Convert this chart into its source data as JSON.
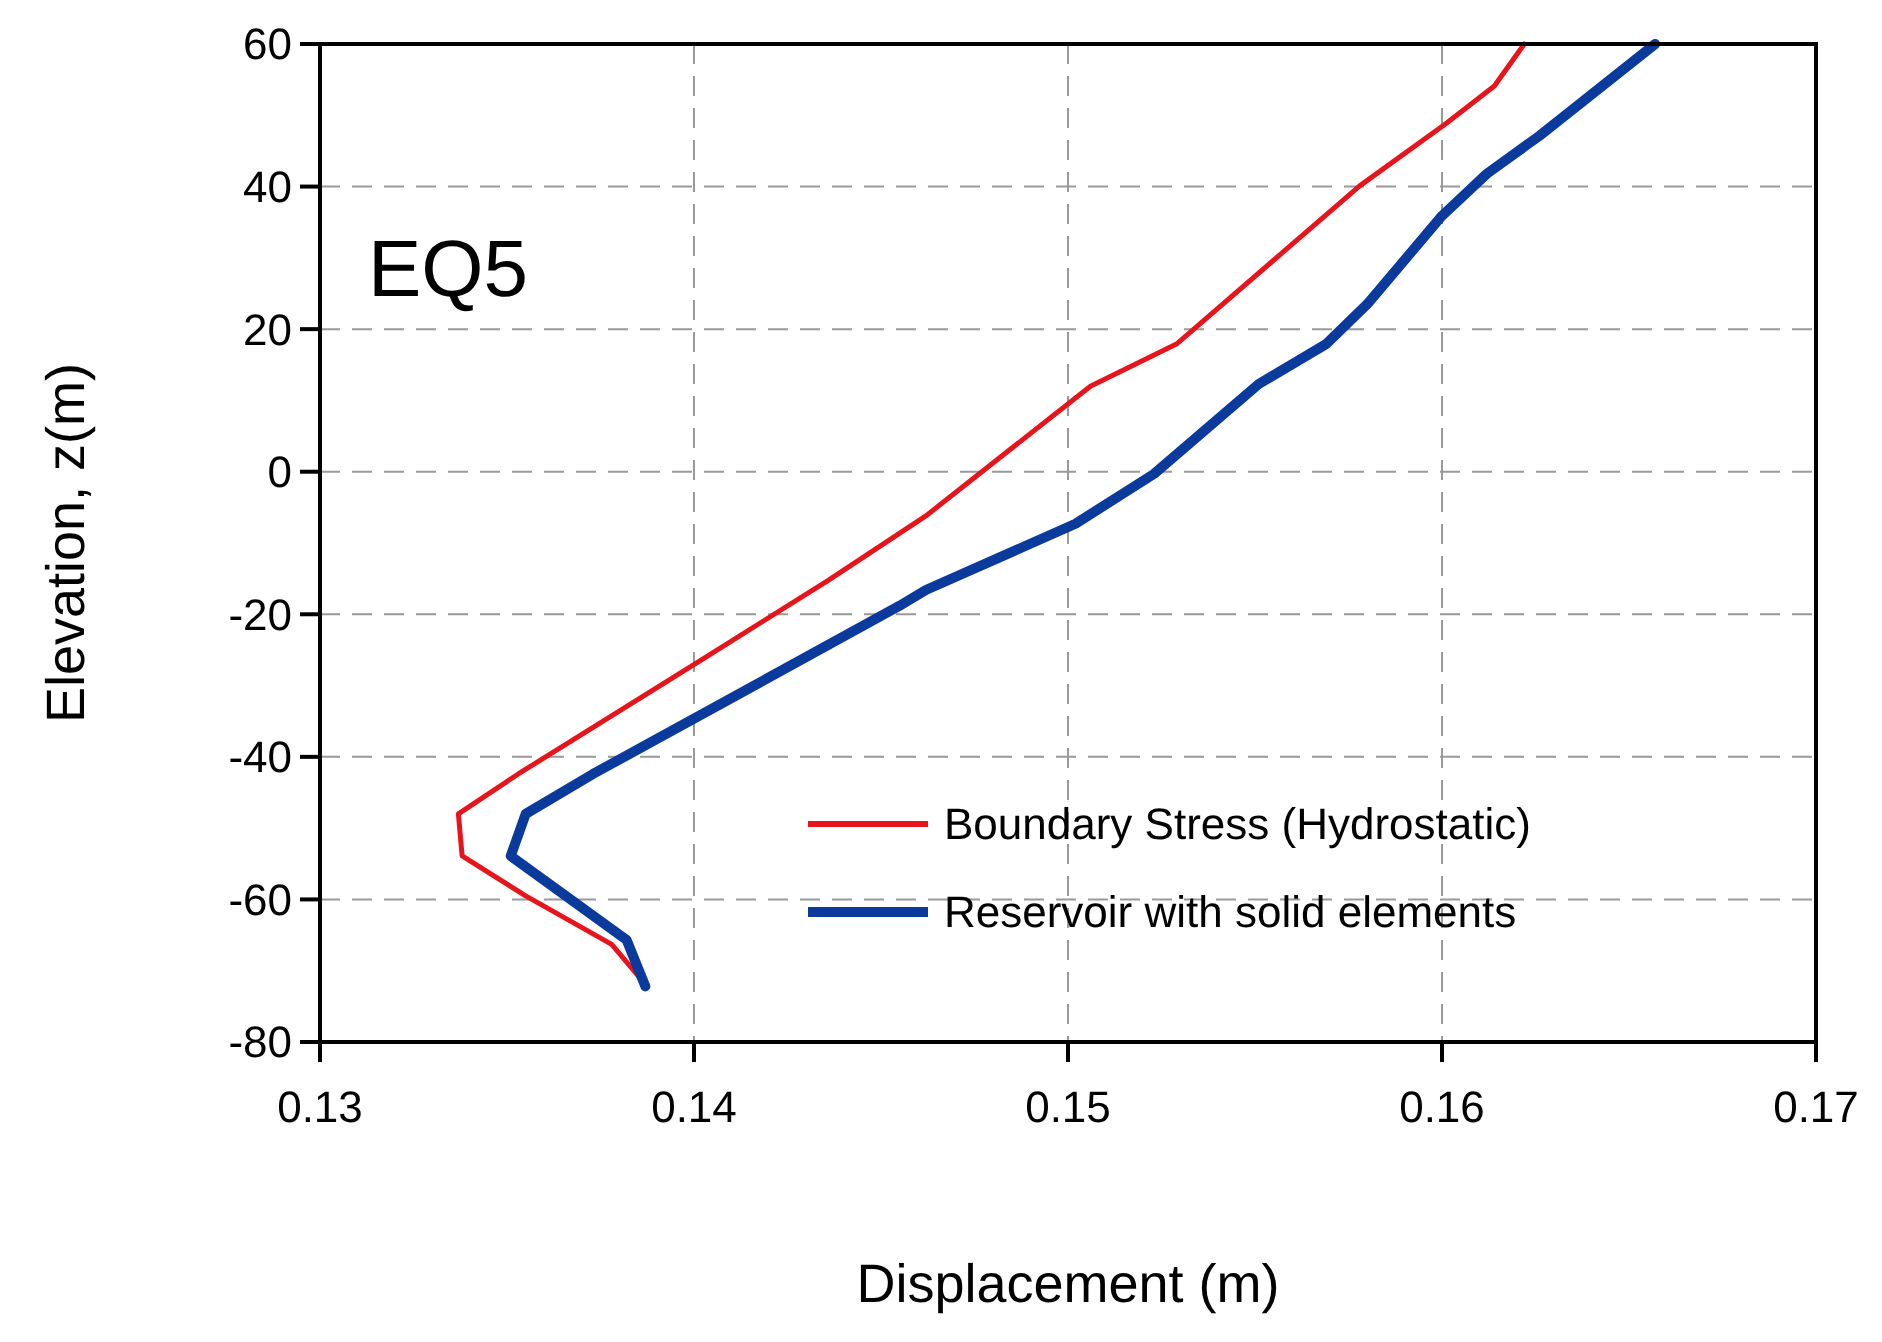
{
  "chart_data": {
    "type": "line",
    "xlabel": "Displacement (m)",
    "ylabel": "Elevation, z(m)",
    "annotations": [
      "EQ5"
    ],
    "xlim": [
      0.13,
      0.17
    ],
    "xticks": [
      0.13,
      0.14,
      0.15,
      0.16,
      0.17
    ],
    "ylim": [
      -80,
      60
    ],
    "yticks": [
      -80,
      -60,
      -40,
      -20,
      0,
      20,
      40,
      60
    ],
    "grid": true,
    "legend": "bottom right",
    "series": [
      {
        "name": "Boundary Stress (Hydrostatic)",
        "color": "#e8141b",
        "x": [
          0.1386,
          0.1378,
          0.1355,
          0.1338,
          0.1337,
          0.1353,
          0.1402,
          0.1436,
          0.1462,
          0.1506,
          0.1529,
          0.1578,
          0.1601,
          0.1614,
          0.1622
        ],
        "values": [
          -71.3,
          -66.3,
          -59.5,
          -53.9,
          -48,
          -42.4,
          -26.4,
          -15.2,
          -6.2,
          12,
          17.9,
          40.1,
          48.8,
          54.1,
          60
        ]
      },
      {
        "name": "Reservoir with solid elements",
        "color": "#0a3a9c",
        "x": [
          0.1387,
          0.1382,
          0.1351,
          0.1355,
          0.1373,
          0.1455,
          0.1462,
          0.1502,
          0.1523,
          0.1551,
          0.1569,
          0.158,
          0.16,
          0.1612,
          0.1626,
          0.1657
        ],
        "values": [
          -72.2,
          -65.7,
          -53.9,
          -48,
          -42.4,
          -18.8,
          -16.6,
          -7.3,
          -0.3,
          12.3,
          17.9,
          23.5,
          35.9,
          41.8,
          47.1,
          60
        ]
      }
    ]
  }
}
